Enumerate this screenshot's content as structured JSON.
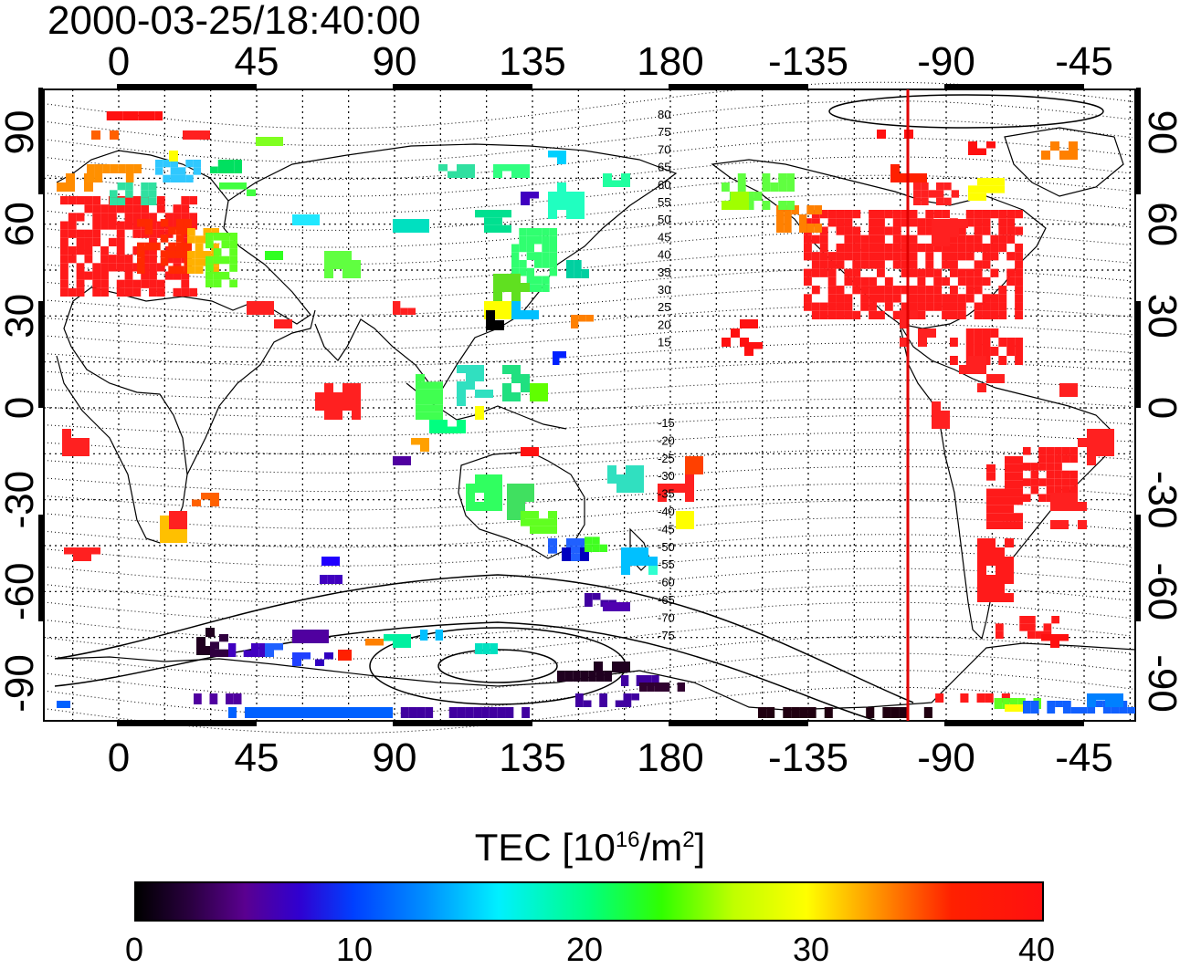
{
  "timestamp": "2000-03-25/18:40:00",
  "map": {
    "lon_ticks": [
      "0",
      "45",
      "90",
      "135",
      "180",
      "-135",
      "-90",
      "-45"
    ],
    "lat_ticks": [
      "90",
      "60",
      "30",
      "0",
      "-30",
      "-60",
      "-90"
    ],
    "contour_labels_north": [
      "80",
      "75",
      "70",
      "65",
      "60",
      "55",
      "50",
      "45",
      "40",
      "35",
      "30",
      "25",
      "20",
      "15"
    ],
    "contour_labels_south": [
      "-15",
      "-20",
      "-25",
      "-30",
      "-35",
      "-40",
      "-45",
      "-50",
      "-55",
      "-60",
      "-65",
      "-70",
      "-75"
    ],
    "terminator_color": "#e00000"
  },
  "colorbar": {
    "title_prefix": "TEC  [10",
    "title_exp": "16",
    "title_mid": "/m",
    "title_exp2": "2",
    "title_suffix": "]",
    "ticks": [
      "0",
      "10",
      "20",
      "30",
      "40"
    ],
    "range": [
      0,
      40
    ]
  }
}
